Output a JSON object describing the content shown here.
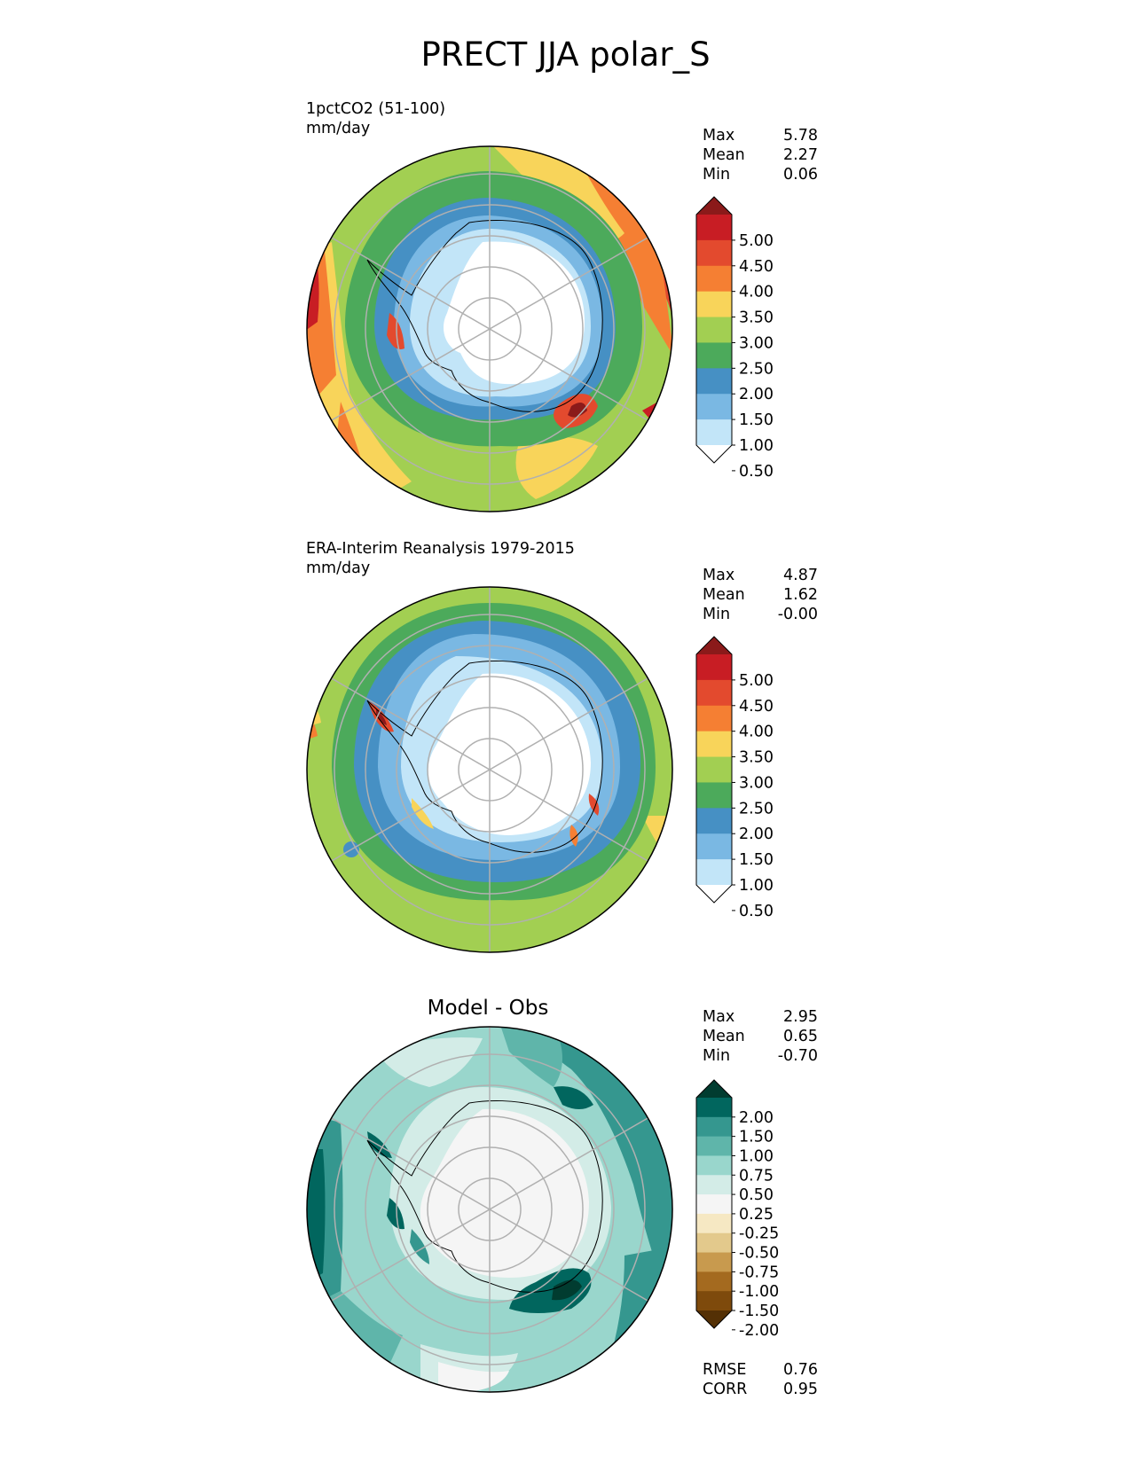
{
  "title": "PRECT JJA polar_S",
  "panels": [
    {
      "id": "test",
      "label_line1": "1pctCO2 (51-100)",
      "label_line2": "mm/day",
      "stats": [
        {
          "name": "Max",
          "value": "5.78"
        },
        {
          "name": "Mean",
          "value": "2.27"
        },
        {
          "name": "Min",
          "value": "0.06"
        }
      ],
      "colorbar": {
        "ticks": [
          "5.00",
          "4.50",
          "4.00",
          "3.50",
          "3.00",
          "2.50",
          "2.00",
          "1.50",
          "1.00",
          "0.50"
        ],
        "colors_top_to_bottom": [
          "#8b1a1a",
          "#c81d24",
          "#e34a2e",
          "#f57f33",
          "#f8d45a",
          "#a2cf52",
          "#4caa5b",
          "#4690c4",
          "#7ab8e3",
          "#c2e5f8",
          "#ffffff"
        ]
      }
    },
    {
      "id": "ref",
      "label_line1": "ERA-Interim Reanalysis 1979-2015",
      "label_line2": "mm/day",
      "stats": [
        {
          "name": "Max",
          "value": "4.87"
        },
        {
          "name": "Mean",
          "value": "1.62"
        },
        {
          "name": "Min",
          "value": "-0.00"
        }
      ],
      "colorbar": {
        "ticks": [
          "5.00",
          "4.50",
          "4.00",
          "3.50",
          "3.00",
          "2.50",
          "2.00",
          "1.50",
          "1.00",
          "0.50"
        ],
        "colors_top_to_bottom": [
          "#8b1a1a",
          "#c81d24",
          "#e34a2e",
          "#f57f33",
          "#f8d45a",
          "#a2cf52",
          "#4caa5b",
          "#4690c4",
          "#7ab8e3",
          "#c2e5f8",
          "#ffffff"
        ]
      }
    },
    {
      "id": "diff",
      "title": "Model - Obs",
      "stats": [
        {
          "name": "Max",
          "value": "2.95"
        },
        {
          "name": "Mean",
          "value": "0.65"
        },
        {
          "name": "Min",
          "value": "-0.70"
        }
      ],
      "colorbar": {
        "ticks": [
          "2.00",
          "1.50",
          "1.00",
          "0.75",
          "0.50",
          "0.25",
          "-0.25",
          "-0.50",
          "-0.75",
          "-1.00",
          "-1.50",
          "-2.00"
        ],
        "colors_top_to_bottom": [
          "#013c30",
          "#01665e",
          "#35978f",
          "#5fb5aa",
          "#99d6cc",
          "#d3ece7",
          "#f5f5f5",
          "#f6e8c3",
          "#e3c98c",
          "#c89a4e",
          "#a46a1f",
          "#7e4a0c",
          "#543005"
        ]
      },
      "bottom_stats": [
        {
          "name": "RMSE",
          "value": "0.76"
        },
        {
          "name": "CORR",
          "value": "0.95"
        }
      ]
    }
  ]
}
